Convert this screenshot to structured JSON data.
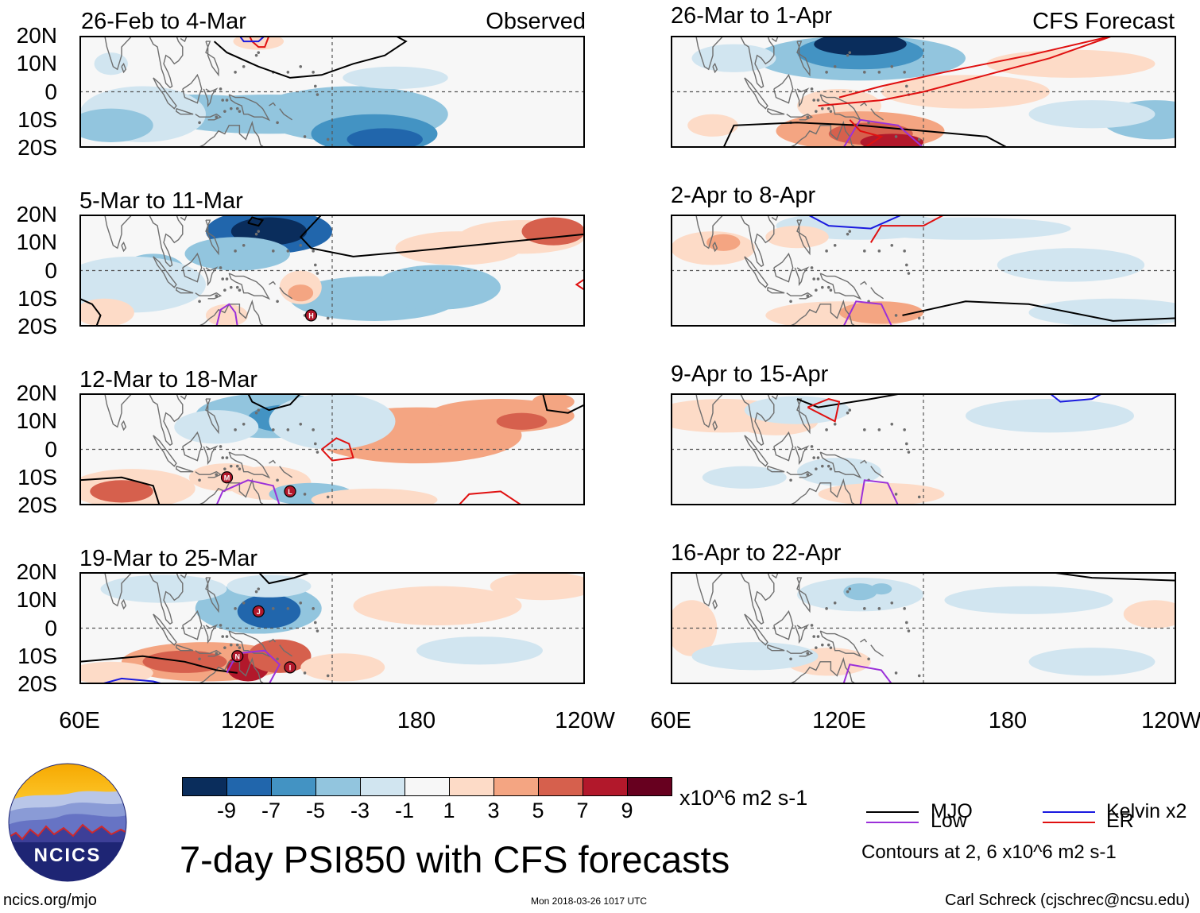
{
  "panels": [
    {
      "id": "p1",
      "title": "26-Feb to 4-Mar",
      "label": "Observed"
    },
    {
      "id": "p2",
      "title": "5-Mar to 11-Mar",
      "label": ""
    },
    {
      "id": "p3",
      "title": "12-Mar to 18-Mar",
      "label": ""
    },
    {
      "id": "p4",
      "title": "19-Mar to 25-Mar",
      "label": ""
    },
    {
      "id": "p5",
      "title": "26-Mar to 1-Apr",
      "label": "CFS Forecast"
    },
    {
      "id": "p6",
      "title": "2-Apr to 8-Apr",
      "label": ""
    },
    {
      "id": "p7",
      "title": "9-Apr to 15-Apr",
      "label": ""
    },
    {
      "id": "p8",
      "title": "16-Apr to 22-Apr",
      "label": ""
    }
  ],
  "lat_labels": [
    "20N",
    "10N",
    "0",
    "10S",
    "20S"
  ],
  "lon_labels": [
    "60E",
    "120E",
    "180",
    "120W"
  ],
  "storm_markers": [
    {
      "panel": "p2",
      "letter": "H"
    },
    {
      "panel": "p3",
      "letter": "M"
    },
    {
      "panel": "p3",
      "letter": "L"
    },
    {
      "panel": "p4",
      "letter": "J"
    },
    {
      "panel": "p4",
      "letter": "N"
    },
    {
      "panel": "p4",
      "letter": "I"
    }
  ],
  "colorbar": {
    "colors": [
      "#0a2d5c",
      "#2166ac",
      "#4393c3",
      "#92c5de",
      "#d1e5f0",
      "#f7f7f7",
      "#fddbc7",
      "#f4a582",
      "#d6604d",
      "#b2182b",
      "#67001f"
    ],
    "ticks": [
      "-9",
      "-7",
      "-5",
      "-3",
      "-1",
      "1",
      "3",
      "5",
      "7",
      "9"
    ],
    "units": "x10^6 m2 s-1"
  },
  "main_title": "7-day PSI850 with CFS forecasts",
  "legend": {
    "items": [
      {
        "name": "MJO",
        "color": "#000000"
      },
      {
        "name": "Low",
        "color": "#9b30d9"
      },
      {
        "name": "Kelvin x2",
        "color": "#1a1adf"
      },
      {
        "name": "ER",
        "color": "#e01010"
      }
    ],
    "contours_note": "Contours at 2, 6 x10^6 m2 s-1"
  },
  "logo_text": "NCICS",
  "footer": {
    "url": "ncics.org/mjo",
    "timestamp": "Mon 2018-03-26 1017 UTC",
    "credit": "Carl Schreck (cjschrec@ncsu.edu)"
  }
}
